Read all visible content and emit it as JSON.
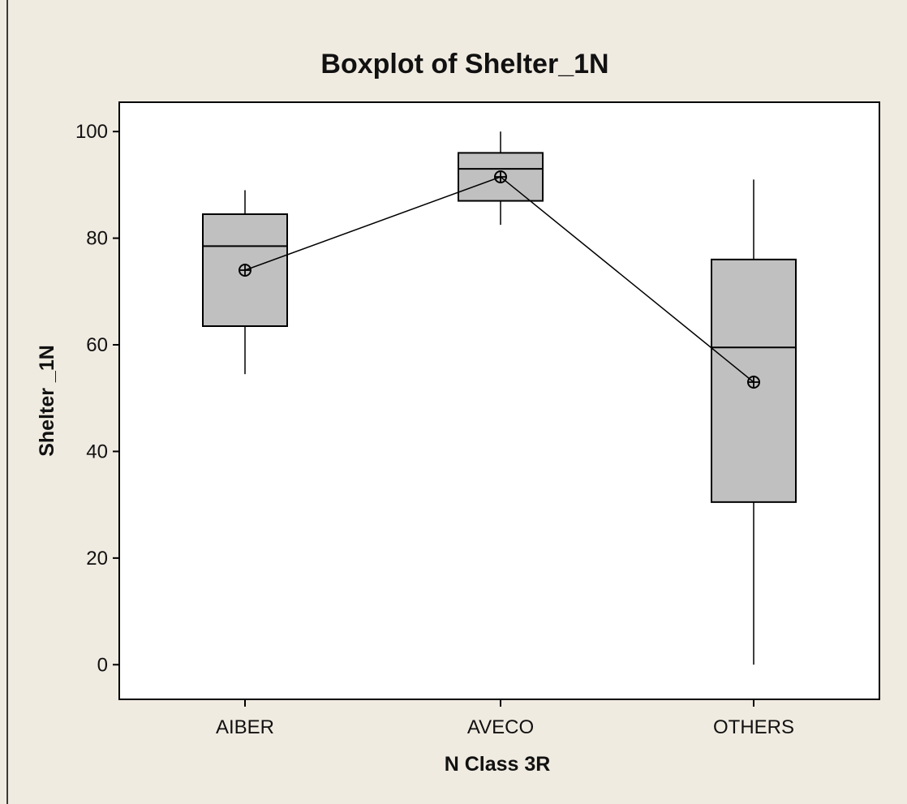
{
  "chart_data": {
    "type": "boxplot",
    "title": "Boxplot of Shelter_1N",
    "xlabel": "N Class 3R",
    "ylabel": "Shelter _1N",
    "ylim": [
      -6.5,
      105.5
    ],
    "yticks": [
      0,
      20,
      40,
      60,
      80,
      100
    ],
    "categories": [
      "AIBER",
      "AVECO",
      "OTHERS"
    ],
    "boxes": [
      {
        "category": "AIBER",
        "whisker_low": 54.5,
        "q1": 63.5,
        "median": 78.5,
        "q3": 84.5,
        "whisker_high": 89,
        "mean": 74
      },
      {
        "category": "AVECO",
        "whisker_low": 82.5,
        "q1": 87,
        "median": 93,
        "q3": 96,
        "whisker_high": 100,
        "mean": 91.5
      },
      {
        "category": "OTHERS",
        "whisker_low": 0,
        "q1": 30.5,
        "median": 59.5,
        "q3": 76,
        "whisker_high": 91,
        "mean": 53
      }
    ],
    "mean_connect_line": true,
    "grid": false,
    "colors": {
      "box_fill": "#c0c0c0",
      "stroke": "#000000",
      "plot_bg": "#ffffff",
      "page_bg": "#f0ebe1"
    }
  }
}
